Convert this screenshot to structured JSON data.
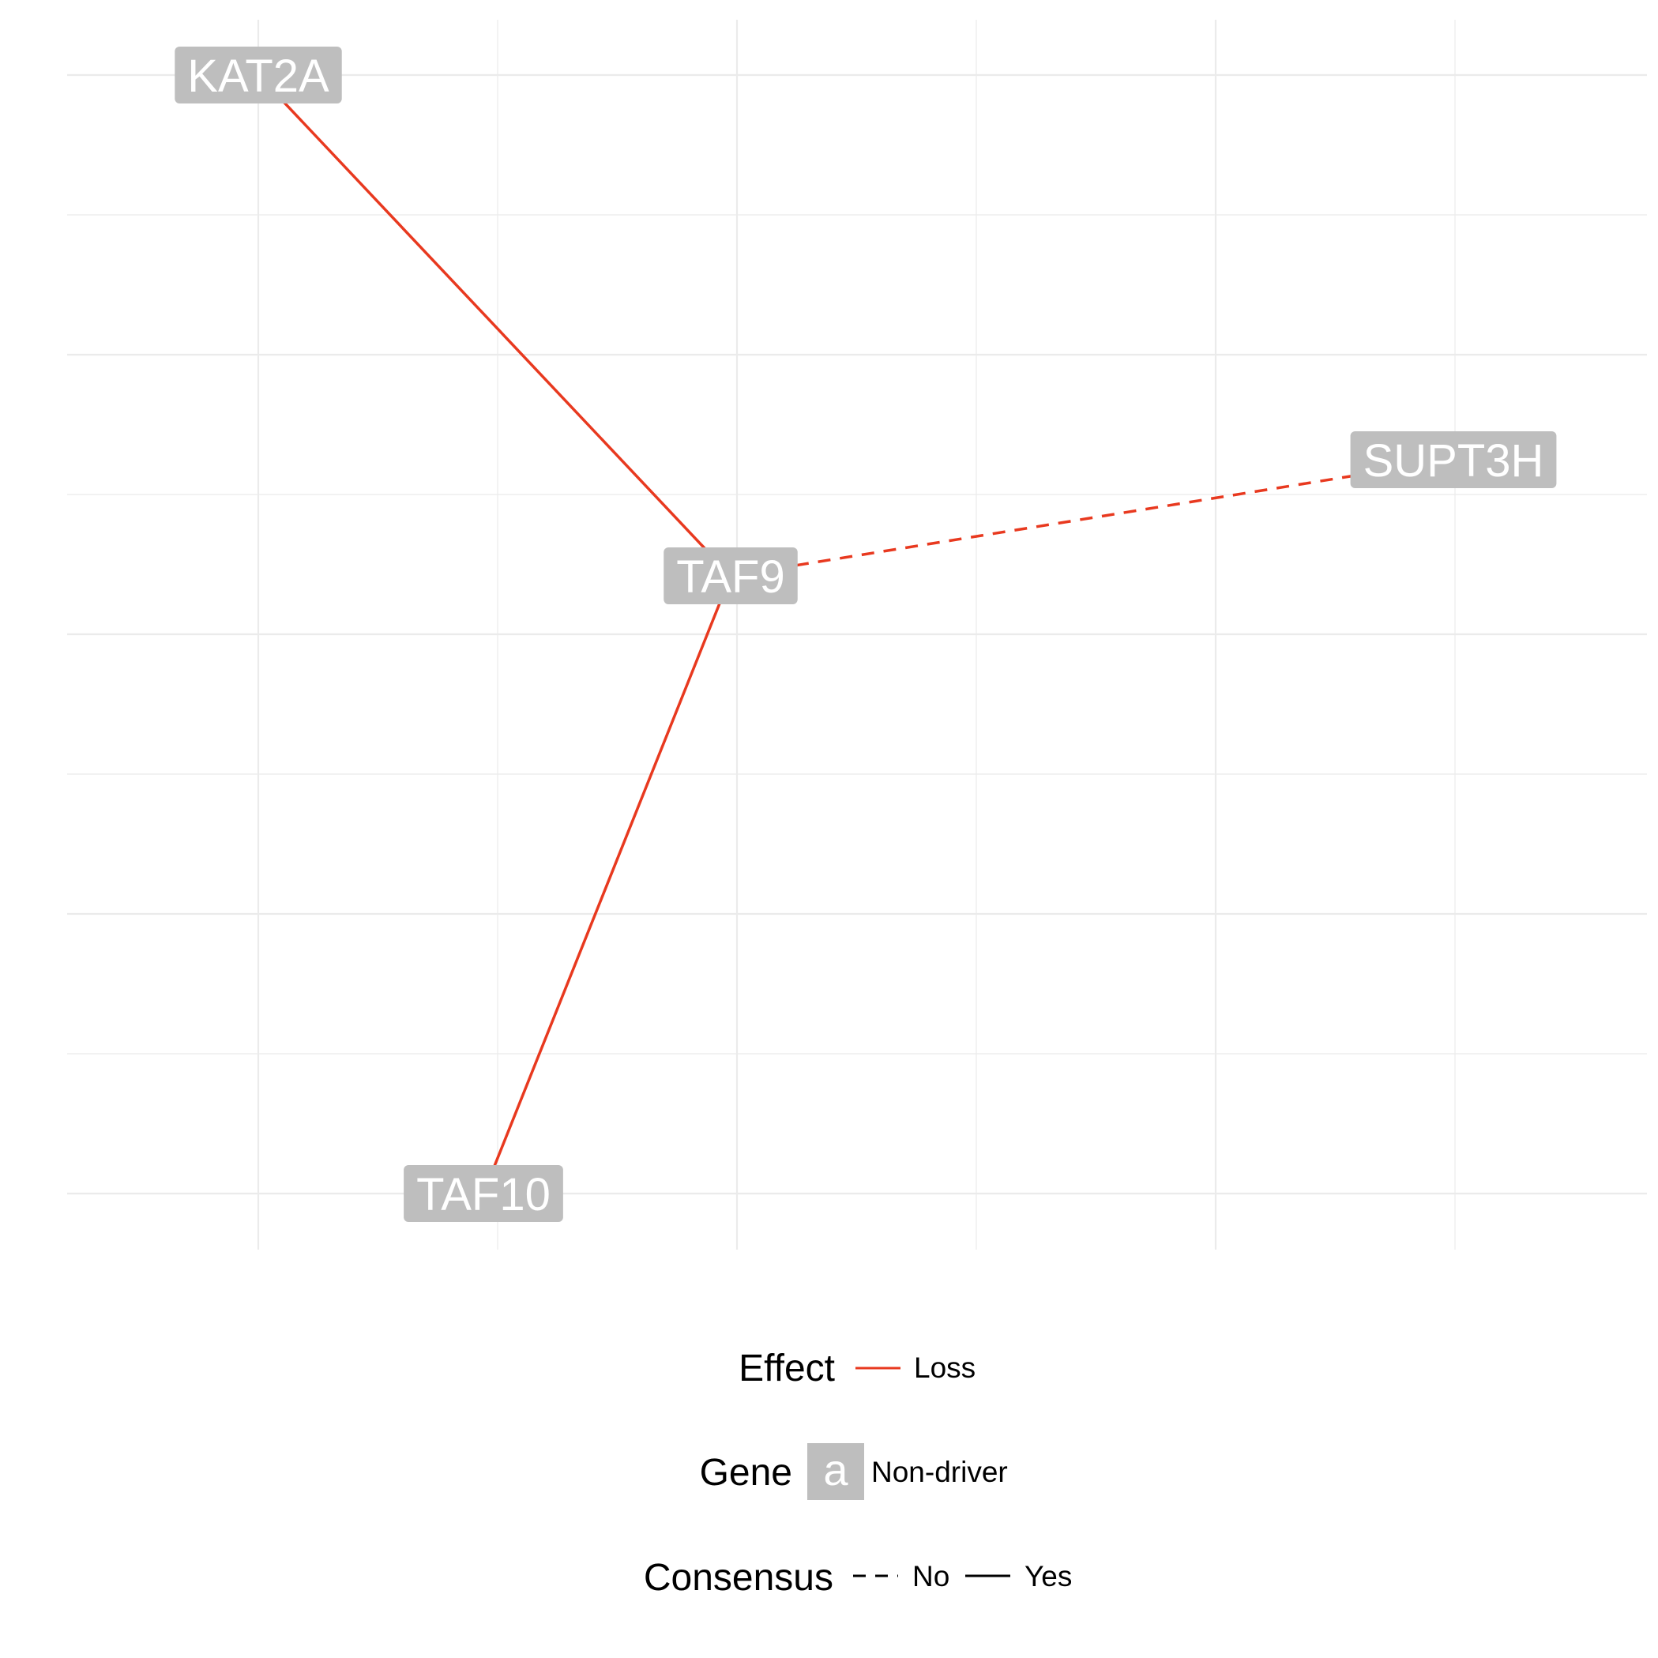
{
  "network": {
    "nodes": [
      {
        "id": "KAT2A",
        "label": "KAT2A",
        "type": "Non-driver"
      },
      {
        "id": "TAF9",
        "label": "TAF9",
        "type": "Non-driver"
      },
      {
        "id": "SUPT3H",
        "label": "SUPT3H",
        "type": "Non-driver"
      },
      {
        "id": "TAF10",
        "label": "TAF10",
        "type": "Non-driver"
      }
    ],
    "edges": [
      {
        "from": "KAT2A",
        "to": "TAF9",
        "effect": "Loss",
        "consensus": "Yes"
      },
      {
        "from": "TAF9",
        "to": "SUPT3H",
        "effect": "Loss",
        "consensus": "No"
      },
      {
        "from": "TAF9",
        "to": "TAF10",
        "effect": "Loss",
        "consensus": "Yes"
      }
    ]
  },
  "legend": {
    "effect": {
      "title": "Effect",
      "items": [
        {
          "label": "Loss",
          "color": "#e8391f"
        }
      ]
    },
    "gene": {
      "title": "Gene",
      "key_glyph": "a",
      "items": [
        {
          "label": "Non-driver",
          "color": "#bebebe"
        }
      ]
    },
    "consensus": {
      "title": "Consensus",
      "items": [
        {
          "label": "No",
          "style": "dashed"
        },
        {
          "label": "Yes",
          "style": "solid"
        }
      ]
    }
  },
  "colors": {
    "loss": "#e8391f",
    "node_fill": "#bebebe",
    "node_text": "#ffffff",
    "grid": "#ebebeb"
  }
}
